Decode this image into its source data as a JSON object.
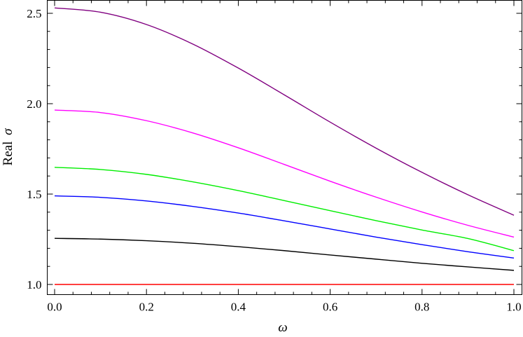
{
  "chart_data": {
    "type": "line",
    "xlabel": "ω",
    "ylabel_prefix": "Real",
    "ylabel_symbol": "σ",
    "xlim": [
      0.0,
      1.0
    ],
    "ylim": [
      0.96,
      2.58
    ],
    "x_ticks": [
      0.0,
      0.2,
      0.4,
      0.6,
      0.8,
      1.0
    ],
    "x_tick_labels": [
      "0.0",
      "0.2",
      "0.4",
      "0.6",
      "0.8",
      "1.0"
    ],
    "y_ticks": [
      1.0,
      1.5,
      2.0,
      2.5
    ],
    "y_tick_labels": [
      "1.0",
      "1.5",
      "2.0",
      "2.5"
    ],
    "grid": false,
    "x": [
      0.0,
      0.1,
      0.2,
      0.3,
      0.4,
      0.5,
      0.6,
      0.7,
      0.8,
      0.9,
      1.0
    ],
    "series": [
      {
        "color": "#ff0000",
        "values": [
          1.0,
          1.0,
          1.0,
          1.0,
          1.0,
          1.0,
          1.0,
          1.0,
          1.0,
          1.0,
          1.0
        ]
      },
      {
        "color": "#000000",
        "values": [
          1.255,
          1.251,
          1.242,
          1.228,
          1.209,
          1.187,
          1.163,
          1.14,
          1.117,
          1.097,
          1.078
        ]
      },
      {
        "color": "#0000ff",
        "values": [
          1.49,
          1.482,
          1.462,
          1.432,
          1.395,
          1.352,
          1.307,
          1.262,
          1.22,
          1.181,
          1.146
        ]
      },
      {
        "color": "#00ee00",
        "values": [
          1.648,
          1.636,
          1.609,
          1.568,
          1.519,
          1.464,
          1.408,
          1.353,
          1.301,
          1.254,
          1.187
        ]
      },
      {
        "color": "#ff00ff",
        "values": [
          1.965,
          1.951,
          1.906,
          1.839,
          1.756,
          1.664,
          1.571,
          1.483,
          1.401,
          1.327,
          1.262
        ]
      },
      {
        "color": "#800080",
        "values": [
          2.53,
          2.506,
          2.438,
          2.331,
          2.197,
          2.049,
          1.898,
          1.754,
          1.62,
          1.496,
          1.383
        ]
      }
    ]
  }
}
